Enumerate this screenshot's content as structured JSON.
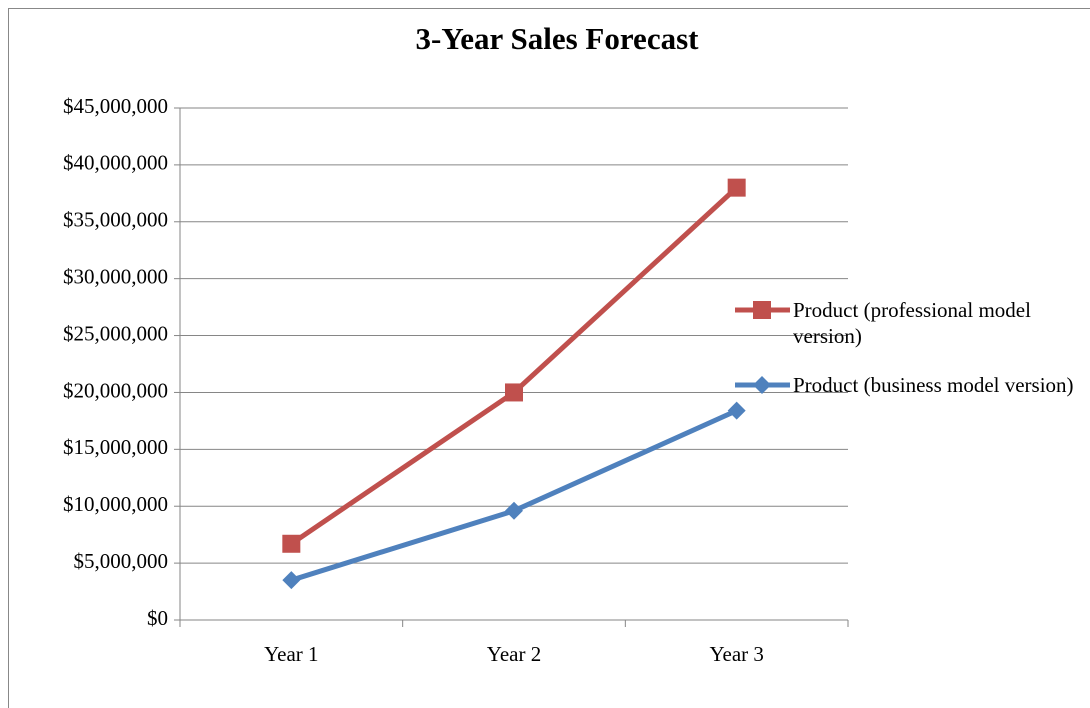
{
  "chart_data": {
    "type": "line",
    "title": "3-Year Sales Forecast",
    "categories": [
      "Year 1",
      "Year 2",
      "Year 3"
    ],
    "series": [
      {
        "name": "Product (professional model version)",
        "color": "#c0504d",
        "marker": "square",
        "values": [
          6700000,
          20000000,
          38000000
        ]
      },
      {
        "name": "Product (business model version)",
        "color": "#4f81bd",
        "marker": "diamond",
        "values": [
          3500000,
          9600000,
          18400000
        ]
      }
    ],
    "ylim": [
      0,
      45000000
    ],
    "yticks": [
      {
        "value": 0,
        "label": "$0"
      },
      {
        "value": 5000000,
        "label": "$5,000,000"
      },
      {
        "value": 10000000,
        "label": "$10,000,000"
      },
      {
        "value": 15000000,
        "label": "$15,000,000"
      },
      {
        "value": 20000000,
        "label": "$20,000,000"
      },
      {
        "value": 25000000,
        "label": "$25,000,000"
      },
      {
        "value": 30000000,
        "label": "$30,000,000"
      },
      {
        "value": 35000000,
        "label": "$35,000,000"
      },
      {
        "value": 40000000,
        "label": "$40,000,000"
      },
      {
        "value": 45000000,
        "label": "$45,000,000"
      }
    ],
    "grid": true,
    "legend": "right"
  }
}
